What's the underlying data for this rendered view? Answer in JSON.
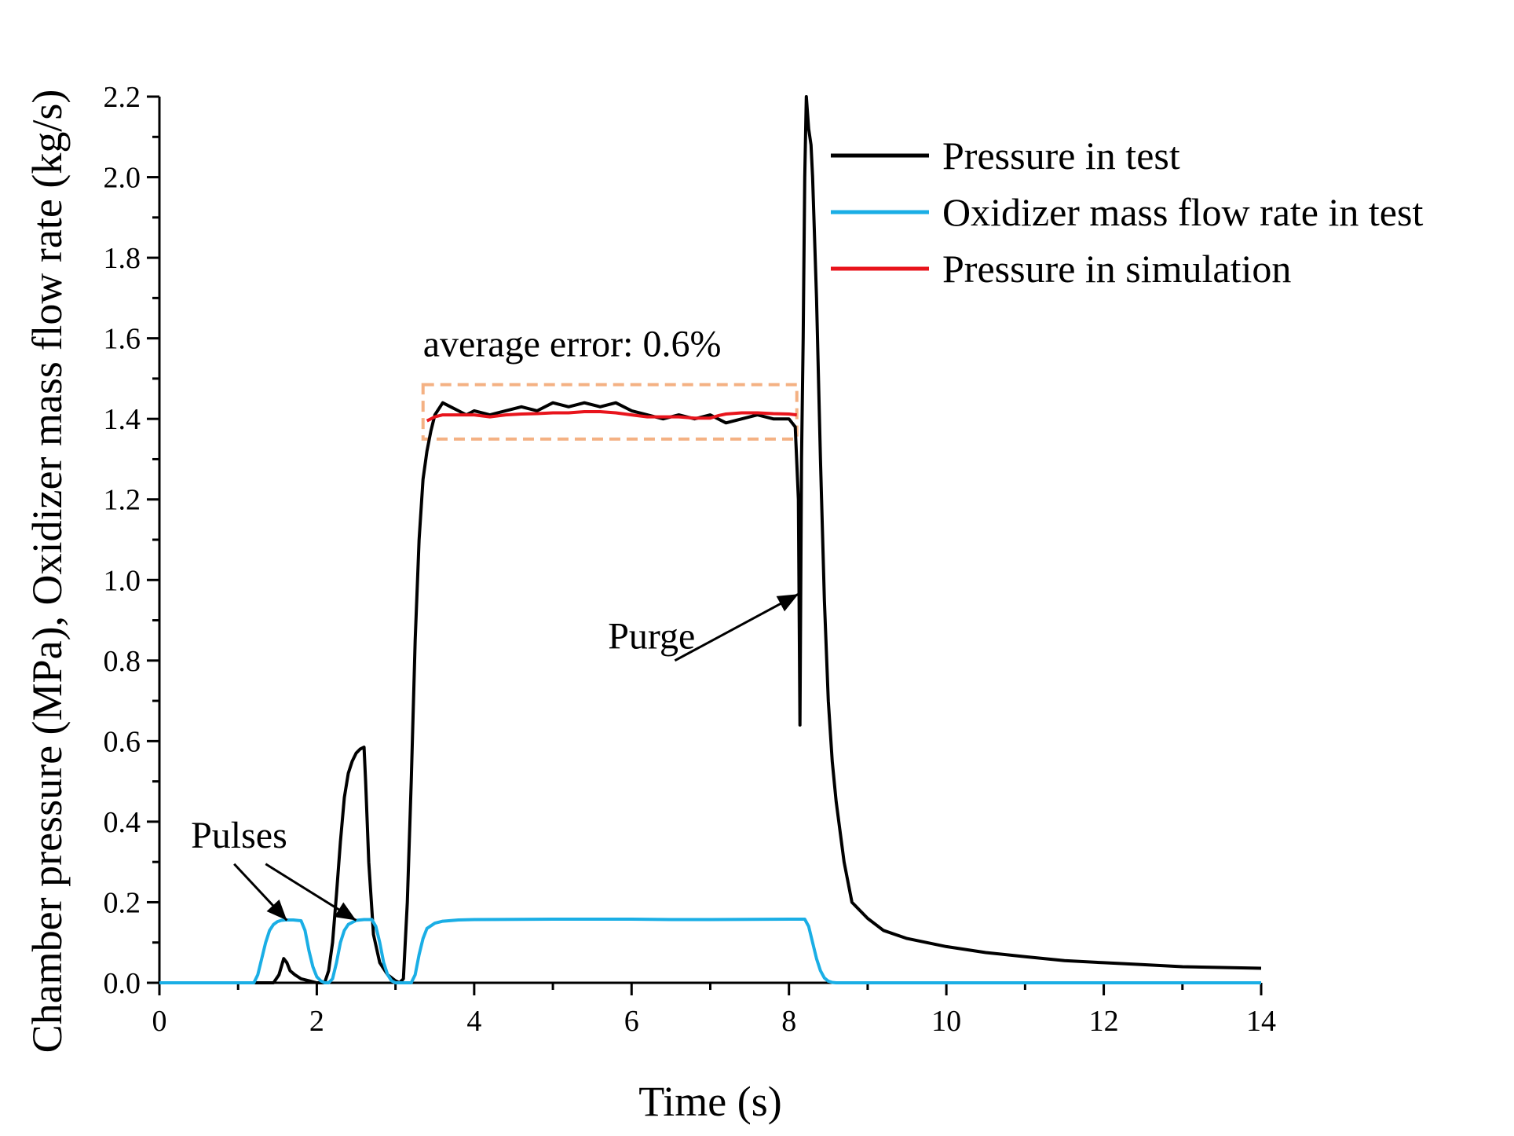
{
  "chart_data": {
    "type": "line",
    "xlabel": "Time (s)",
    "ylabel": "Chamber pressure (MPa), Oxidizer mass flow rate (kg/s)",
    "xlim": [
      0,
      14
    ],
    "ylim": [
      0,
      2.2
    ],
    "xticks": [
      0,
      2,
      4,
      6,
      8,
      10,
      12,
      14
    ],
    "xtick_labels": [
      "0",
      "2",
      "4",
      "6",
      "8",
      "10",
      "12",
      "14"
    ],
    "yticks": [
      0,
      0.2,
      0.4,
      0.6,
      0.8,
      1.0,
      1.2,
      1.4,
      1.6,
      1.8,
      2.0,
      2.2
    ],
    "ytick_labels": [
      "0.0",
      "0.2",
      "0.4",
      "0.6",
      "0.8",
      "1.0",
      "1.2",
      "1.4",
      "1.6",
      "1.8",
      "2.0",
      "2.2"
    ],
    "grid": false,
    "legend_position": "top-right",
    "series": [
      {
        "name": "Pressure in test",
        "color": "#000000",
        "x": [
          0,
          1.45,
          1.52,
          1.58,
          1.62,
          1.66,
          1.72,
          1.8,
          1.9,
          2.0,
          2.1,
          2.15,
          2.2,
          2.25,
          2.3,
          2.35,
          2.4,
          2.45,
          2.5,
          2.55,
          2.6,
          2.62,
          2.66,
          2.72,
          2.8,
          2.9,
          3.0,
          3.05,
          3.1,
          3.15,
          3.2,
          3.25,
          3.3,
          3.35,
          3.4,
          3.45,
          3.5,
          3.6,
          3.7,
          3.8,
          3.9,
          4.0,
          4.2,
          4.4,
          4.6,
          4.8,
          5.0,
          5.2,
          5.4,
          5.6,
          5.8,
          6.0,
          6.2,
          6.4,
          6.6,
          6.8,
          7.0,
          7.2,
          7.4,
          7.6,
          7.8,
          8.0,
          8.08,
          8.12,
          8.14,
          8.16,
          8.18,
          8.2,
          8.22,
          8.25,
          8.28,
          8.3,
          8.35,
          8.4,
          8.45,
          8.5,
          8.55,
          8.6,
          8.7,
          8.8,
          9.0,
          9.2,
          9.5,
          10.0,
          10.5,
          11.0,
          11.5,
          12.0,
          12.5,
          13.0,
          13.5,
          14.0
        ],
        "y": [
          0,
          0,
          0.02,
          0.06,
          0.05,
          0.03,
          0.02,
          0.01,
          0.005,
          0,
          0,
          0.03,
          0.1,
          0.22,
          0.35,
          0.46,
          0.52,
          0.55,
          0.57,
          0.58,
          0.585,
          0.5,
          0.3,
          0.12,
          0.05,
          0.02,
          0.005,
          0,
          0.01,
          0.2,
          0.5,
          0.85,
          1.1,
          1.25,
          1.32,
          1.37,
          1.41,
          1.44,
          1.43,
          1.42,
          1.41,
          1.42,
          1.41,
          1.42,
          1.43,
          1.42,
          1.44,
          1.43,
          1.44,
          1.43,
          1.44,
          1.42,
          1.41,
          1.4,
          1.41,
          1.4,
          1.41,
          1.39,
          1.4,
          1.41,
          1.4,
          1.4,
          1.38,
          1.2,
          0.64,
          1.3,
          1.6,
          2.0,
          2.2,
          2.12,
          2.08,
          2.0,
          1.7,
          1.3,
          0.95,
          0.7,
          0.55,
          0.45,
          0.3,
          0.2,
          0.16,
          0.13,
          0.11,
          0.09,
          0.075,
          0.065,
          0.055,
          0.05,
          0.045,
          0.04,
          0.038,
          0.036
        ]
      },
      {
        "name": "Oxidizer mass flow rate in test",
        "color": "#1aaee5",
        "x": [
          0,
          1.2,
          1.25,
          1.3,
          1.35,
          1.4,
          1.45,
          1.5,
          1.55,
          1.6,
          1.7,
          1.8,
          1.85,
          1.9,
          1.95,
          2.0,
          2.05,
          2.1,
          2.15,
          2.2,
          2.25,
          2.3,
          2.35,
          2.4,
          2.5,
          2.6,
          2.7,
          2.75,
          2.8,
          2.85,
          2.9,
          2.95,
          3.0,
          3.05,
          3.1,
          3.15,
          3.2,
          3.25,
          3.3,
          3.35,
          3.4,
          3.5,
          3.6,
          3.8,
          4.0,
          5.0,
          6.0,
          6.5,
          7.0,
          8.0,
          8.2,
          8.25,
          8.3,
          8.35,
          8.4,
          8.45,
          8.5,
          8.55,
          8.6,
          8.7,
          14.0
        ],
        "y": [
          0,
          0,
          0.02,
          0.06,
          0.1,
          0.13,
          0.145,
          0.152,
          0.155,
          0.156,
          0.156,
          0.154,
          0.13,
          0.08,
          0.04,
          0.015,
          0.005,
          0,
          0,
          0.01,
          0.05,
          0.1,
          0.13,
          0.145,
          0.155,
          0.157,
          0.157,
          0.14,
          0.1,
          0.05,
          0.02,
          0.005,
          0,
          0,
          0,
          0,
          0,
          0.02,
          0.07,
          0.11,
          0.135,
          0.148,
          0.153,
          0.156,
          0.157,
          0.158,
          0.158,
          0.157,
          0.157,
          0.158,
          0.158,
          0.14,
          0.1,
          0.06,
          0.03,
          0.012,
          0.004,
          0.001,
          0,
          0,
          0
        ]
      },
      {
        "name": "Pressure in simulation",
        "color": "#e8141c",
        "x": [
          3.4,
          3.5,
          3.6,
          3.8,
          4.0,
          4.2,
          4.4,
          4.6,
          4.8,
          5.0,
          5.2,
          5.4,
          5.6,
          5.8,
          6.0,
          6.2,
          6.4,
          6.6,
          6.8,
          7.0,
          7.1,
          7.2,
          7.4,
          7.6,
          7.8,
          8.0,
          8.1
        ],
        "y": [
          1.395,
          1.405,
          1.41,
          1.41,
          1.41,
          1.405,
          1.41,
          1.412,
          1.413,
          1.415,
          1.415,
          1.418,
          1.418,
          1.415,
          1.41,
          1.405,
          1.405,
          1.405,
          1.402,
          1.402,
          1.408,
          1.412,
          1.415,
          1.415,
          1.413,
          1.412,
          1.41
        ]
      }
    ],
    "annotations": {
      "average_error": "average error: 0.6%",
      "purge": "Purge",
      "pulses": "Pulses"
    },
    "highlight_box": {
      "x": [
        3.35,
        8.1
      ],
      "y": [
        1.35,
        1.485
      ],
      "color": "#f4b183"
    }
  }
}
